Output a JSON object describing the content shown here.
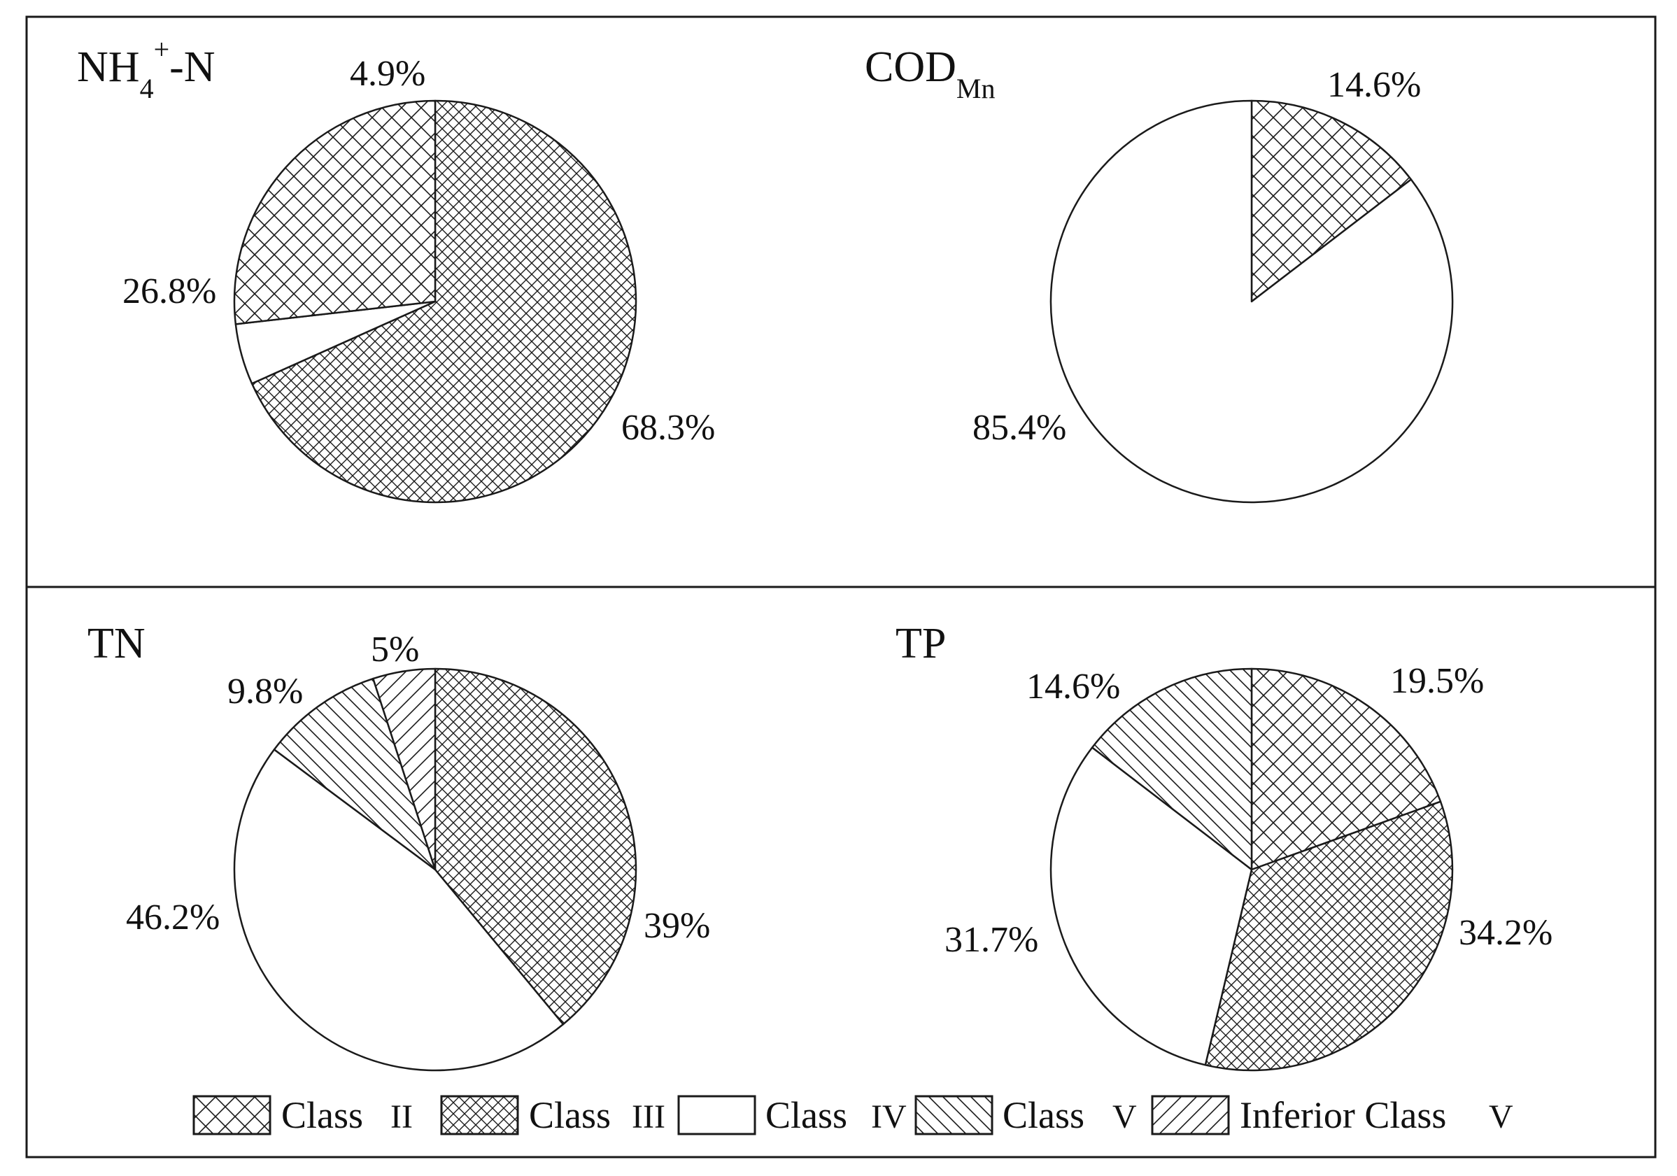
{
  "colors": {
    "stroke": "#1a1a1a",
    "background": "#ffffff"
  },
  "legend": [
    {
      "key": "class2",
      "label": "Class",
      "numeral": "II",
      "pattern": "cross-hatch-wide"
    },
    {
      "key": "class3",
      "label": "Class",
      "numeral": "III",
      "pattern": "cross-hatch-dense"
    },
    {
      "key": "class4",
      "label": "Class",
      "numeral": "IV",
      "pattern": "none"
    },
    {
      "key": "class5",
      "label": "Class",
      "numeral": "V",
      "pattern": "backslash-hatch"
    },
    {
      "key": "inferior",
      "label": "Inferior Class",
      "numeral": "V",
      "pattern": "forward-slash-hatch"
    }
  ],
  "chart_data": [
    {
      "type": "pie",
      "title": "NH4+-N",
      "title_main": "NH",
      "title_sub": "4",
      "title_sup": "+",
      "title_tail": "-N",
      "slices": [
        {
          "class": "class3",
          "value": 68.3,
          "label": "68.3%"
        },
        {
          "class": "class4",
          "value": 4.9,
          "label": "4.9%"
        },
        {
          "class": "class2",
          "value": 26.8,
          "label": "26.8%"
        }
      ]
    },
    {
      "type": "pie",
      "title": "CODMn",
      "title_main": "COD",
      "title_sub": "Mn",
      "slices": [
        {
          "class": "class2",
          "value": 14.6,
          "label": "14.6%"
        },
        {
          "class": "class4",
          "value": 85.4,
          "label": "85.4%"
        }
      ]
    },
    {
      "type": "pie",
      "title": "TN",
      "title_main": "TN",
      "slices": [
        {
          "class": "class3",
          "value": 39,
          "label": "39%"
        },
        {
          "class": "class4",
          "value": 46.2,
          "label": "46.2%"
        },
        {
          "class": "class5",
          "value": 9.8,
          "label": "9.8%"
        },
        {
          "class": "inferior",
          "value": 5,
          "label": "5%"
        }
      ]
    },
    {
      "type": "pie",
      "title": "TP",
      "title_main": "TP",
      "slices": [
        {
          "class": "class2",
          "value": 19.5,
          "label": "19.5%"
        },
        {
          "class": "class3",
          "value": 34.2,
          "label": "34.2%"
        },
        {
          "class": "class4",
          "value": 31.7,
          "label": "31.7%"
        },
        {
          "class": "class5",
          "value": 14.6,
          "label": "14.6%"
        }
      ]
    }
  ]
}
